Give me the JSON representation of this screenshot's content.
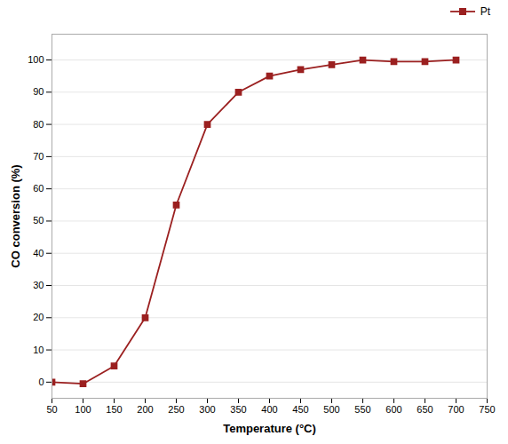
{
  "chart_data": {
    "type": "line",
    "xlabel": "Temperature (°C)",
    "ylabel": "CO conversion (%)",
    "x": [
      50,
      100,
      150,
      200,
      250,
      300,
      350,
      400,
      450,
      500,
      550,
      600,
      650,
      700
    ],
    "series": [
      {
        "name": "Pt",
        "color": "#9B2020",
        "marker": "square",
        "line_style": "solid",
        "values": [
          0,
          -0.5,
          5,
          20,
          55,
          80,
          90,
          95,
          97,
          98.5,
          100,
          99.5,
          99.5,
          100
        ]
      }
    ],
    "xlim": [
      50,
      750
    ],
    "ylim": [
      -5,
      108
    ],
    "xticks": [
      50,
      100,
      150,
      200,
      250,
      300,
      350,
      400,
      450,
      500,
      550,
      600,
      650,
      700,
      750
    ],
    "yticks": [
      0,
      10,
      20,
      30,
      40,
      50,
      60,
      70,
      80,
      90,
      100
    ],
    "grid": "y",
    "legend": "right"
  }
}
